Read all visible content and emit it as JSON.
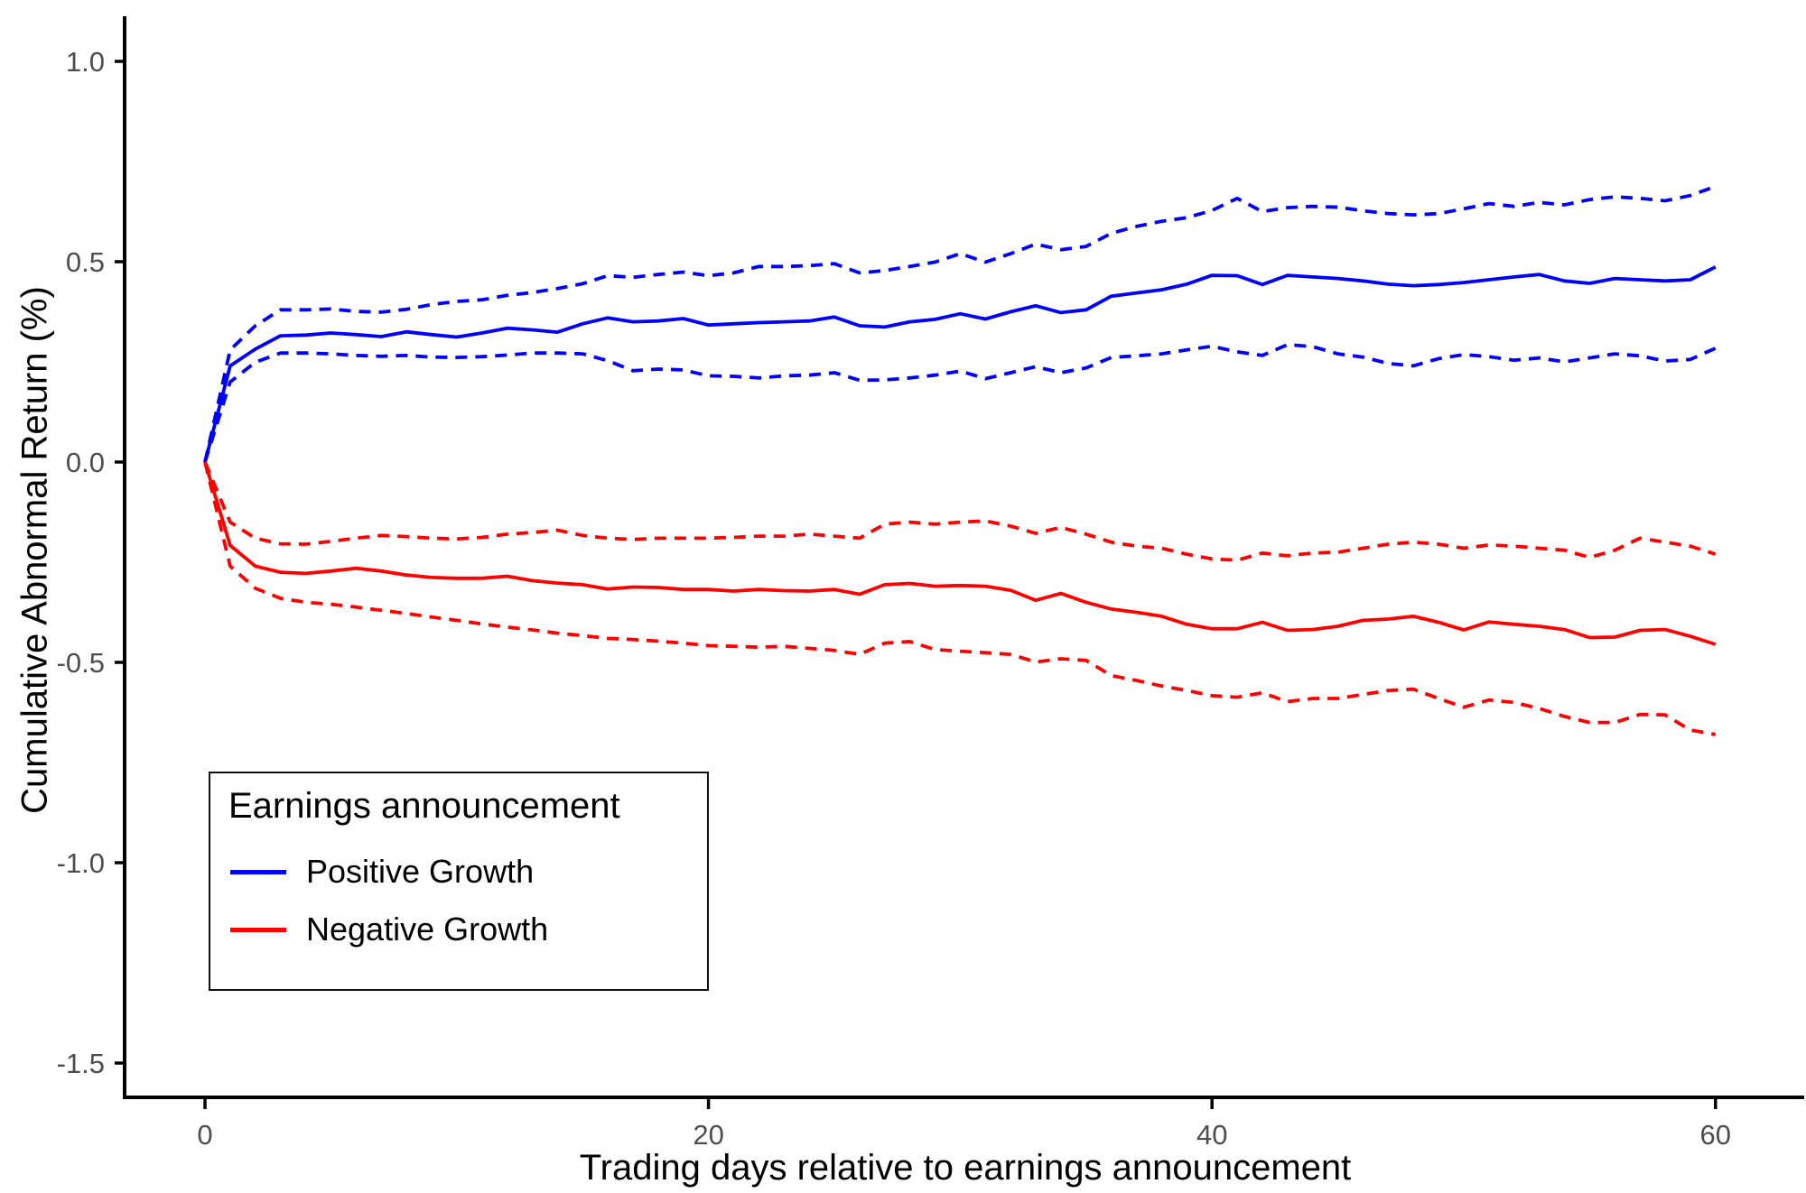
{
  "chart_data": {
    "type": "line",
    "title": "",
    "xlabel": "Trading days relative to earnings announcement",
    "ylabel": "Cumulative Abnormal Return (%)",
    "x_start": 0,
    "x_step": 1,
    "x_ticks": [
      0,
      20,
      40,
      60
    ],
    "x_tick_labels": [
      "0",
      "20",
      "40",
      "60"
    ],
    "y_ticks": [
      1.0,
      0.5,
      0.0,
      -0.5,
      -1.0,
      -1.5
    ],
    "y_tick_labels": [
      "1.0",
      "0.5",
      "0.0",
      "-0.5",
      "-1.0",
      "-1.5"
    ],
    "xlim": [
      -3.2,
      63.6
    ],
    "ylim": [
      -1.58,
      1.11
    ],
    "grid": false,
    "colors": {
      "positive": "#0000FF",
      "negative": "#FF0000",
      "tick_text": "#4d4d4d",
      "axis_line": "#000000"
    },
    "legend": {
      "title": "Earnings announcement",
      "position": "inside-bottom-left",
      "entries": [
        {
          "label": "Positive Growth",
          "color": "#0000FF"
        },
        {
          "label": "Negative Growth",
          "color": "#FF0000"
        }
      ]
    },
    "series": [
      {
        "name": "Positive Growth CAR",
        "group": "positive",
        "style": "solid",
        "color": "#0000FF",
        "values": [
          0.0,
          0.24,
          0.282,
          0.315,
          0.317,
          0.322,
          0.318,
          0.313,
          0.325,
          0.318,
          0.312,
          0.322,
          0.334,
          0.33,
          0.324,
          0.345,
          0.36,
          0.35,
          0.352,
          0.358,
          0.342,
          0.345,
          0.348,
          0.35,
          0.352,
          0.362,
          0.34,
          0.337,
          0.35,
          0.356,
          0.37,
          0.357,
          0.375,
          0.39,
          0.373,
          0.38,
          0.414,
          0.422,
          0.43,
          0.444,
          0.466,
          0.465,
          0.443,
          0.466,
          0.462,
          0.458,
          0.452,
          0.444,
          0.44,
          0.443,
          0.448,
          0.455,
          0.462,
          0.468,
          0.452,
          0.446,
          0.458,
          0.455,
          0.452,
          0.455,
          0.487
        ]
      },
      {
        "name": "Positive Growth upper CI",
        "group": "positive",
        "style": "dashed",
        "color": "#0000FF",
        "values": [
          0.0,
          0.28,
          0.34,
          0.38,
          0.38,
          0.382,
          0.376,
          0.374,
          0.381,
          0.393,
          0.401,
          0.405,
          0.416,
          0.423,
          0.433,
          0.445,
          0.465,
          0.461,
          0.468,
          0.474,
          0.465,
          0.472,
          0.488,
          0.488,
          0.49,
          0.495,
          0.472,
          0.478,
          0.488,
          0.499,
          0.52,
          0.499,
          0.52,
          0.544,
          0.53,
          0.538,
          0.571,
          0.588,
          0.601,
          0.61,
          0.628,
          0.658,
          0.625,
          0.635,
          0.638,
          0.636,
          0.627,
          0.62,
          0.617,
          0.62,
          0.632,
          0.645,
          0.638,
          0.648,
          0.642,
          0.655,
          0.662,
          0.658,
          0.652,
          0.665,
          0.688
        ]
      },
      {
        "name": "Positive Growth lower CI",
        "group": "positive",
        "style": "dashed",
        "color": "#0000FF",
        "values": [
          0.0,
          0.2,
          0.249,
          0.272,
          0.272,
          0.27,
          0.266,
          0.264,
          0.266,
          0.262,
          0.261,
          0.263,
          0.267,
          0.272,
          0.272,
          0.27,
          0.253,
          0.228,
          0.232,
          0.23,
          0.215,
          0.214,
          0.21,
          0.215,
          0.217,
          0.223,
          0.204,
          0.205,
          0.21,
          0.217,
          0.227,
          0.208,
          0.223,
          0.238,
          0.223,
          0.235,
          0.261,
          0.265,
          0.27,
          0.28,
          0.289,
          0.275,
          0.266,
          0.293,
          0.288,
          0.27,
          0.262,
          0.246,
          0.24,
          0.258,
          0.268,
          0.263,
          0.254,
          0.26,
          0.25,
          0.26,
          0.27,
          0.265,
          0.252,
          0.256,
          0.284
        ]
      },
      {
        "name": "Negative Growth CAR",
        "group": "negative",
        "style": "solid",
        "color": "#FF0000",
        "values": [
          0.0,
          -0.208,
          -0.26,
          -0.275,
          -0.278,
          -0.272,
          -0.265,
          -0.272,
          -0.282,
          -0.288,
          -0.29,
          -0.29,
          -0.285,
          -0.296,
          -0.302,
          -0.306,
          -0.317,
          -0.312,
          -0.313,
          -0.318,
          -0.318,
          -0.322,
          -0.318,
          -0.321,
          -0.322,
          -0.318,
          -0.33,
          -0.306,
          -0.303,
          -0.31,
          -0.308,
          -0.31,
          -0.32,
          -0.345,
          -0.328,
          -0.35,
          -0.367,
          -0.375,
          -0.385,
          -0.405,
          -0.416,
          -0.416,
          -0.4,
          -0.42,
          -0.418,
          -0.41,
          -0.395,
          -0.392,
          -0.385,
          -0.4,
          -0.419,
          -0.399,
          -0.405,
          -0.41,
          -0.418,
          -0.438,
          -0.437,
          -0.42,
          -0.418,
          -0.435,
          -0.455
        ]
      },
      {
        "name": "Negative Growth upper CI",
        "group": "negative",
        "style": "dashed",
        "color": "#FF0000",
        "values": [
          0.0,
          -0.15,
          -0.19,
          -0.204,
          -0.205,
          -0.198,
          -0.19,
          -0.183,
          -0.186,
          -0.19,
          -0.192,
          -0.188,
          -0.18,
          -0.176,
          -0.17,
          -0.183,
          -0.19,
          -0.193,
          -0.19,
          -0.19,
          -0.19,
          -0.188,
          -0.185,
          -0.185,
          -0.18,
          -0.185,
          -0.19,
          -0.155,
          -0.15,
          -0.155,
          -0.15,
          -0.147,
          -0.16,
          -0.178,
          -0.163,
          -0.18,
          -0.2,
          -0.21,
          -0.215,
          -0.23,
          -0.242,
          -0.245,
          -0.227,
          -0.234,
          -0.227,
          -0.225,
          -0.215,
          -0.205,
          -0.2,
          -0.205,
          -0.215,
          -0.207,
          -0.21,
          -0.215,
          -0.22,
          -0.238,
          -0.22,
          -0.19,
          -0.2,
          -0.21,
          -0.23
        ]
      },
      {
        "name": "Negative Growth lower CI",
        "group": "negative",
        "style": "dashed",
        "color": "#FF0000",
        "values": [
          0.0,
          -0.26,
          -0.315,
          -0.34,
          -0.35,
          -0.355,
          -0.362,
          -0.37,
          -0.378,
          -0.387,
          -0.395,
          -0.404,
          -0.412,
          -0.419,
          -0.427,
          -0.433,
          -0.44,
          -0.443,
          -0.447,
          -0.452,
          -0.458,
          -0.46,
          -0.462,
          -0.46,
          -0.465,
          -0.47,
          -0.48,
          -0.452,
          -0.448,
          -0.468,
          -0.472,
          -0.476,
          -0.48,
          -0.499,
          -0.491,
          -0.495,
          -0.533,
          -0.545,
          -0.559,
          -0.57,
          -0.583,
          -0.587,
          -0.576,
          -0.598,
          -0.59,
          -0.59,
          -0.58,
          -0.57,
          -0.567,
          -0.59,
          -0.612,
          -0.594,
          -0.6,
          -0.615,
          -0.635,
          -0.65,
          -0.65,
          -0.63,
          -0.631,
          -0.669,
          -0.68
        ]
      }
    ]
  }
}
